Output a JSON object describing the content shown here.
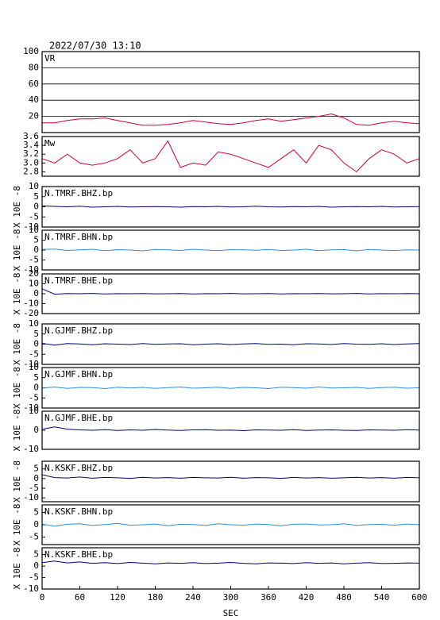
{
  "chart_data": [
    {
      "type": "line",
      "title": "2022/07/30 13:10",
      "label": "VR",
      "color": "#d0003a",
      "grid": true,
      "x": [
        0,
        20,
        40,
        60,
        80,
        100,
        120,
        140,
        160,
        180,
        200,
        220,
        240,
        260,
        280,
        300,
        320,
        340,
        360,
        380,
        400,
        420,
        440,
        460,
        480,
        500,
        520,
        540,
        560,
        580,
        600
      ],
      "values": [
        12,
        12,
        15,
        17,
        17,
        18,
        15,
        12,
        9,
        9,
        10,
        12,
        15,
        13,
        11,
        10,
        12,
        15,
        17,
        14,
        16,
        18,
        20,
        23,
        18,
        10,
        9,
        12,
        14,
        12,
        11
      ],
      "xlim": [
        0,
        600
      ],
      "ylim": [
        0,
        100
      ],
      "yticks": [
        20,
        40,
        60,
        80,
        100
      ]
    },
    {
      "type": "line",
      "label": "Mw",
      "color": "#d0003a",
      "x": [
        0,
        20,
        40,
        60,
        80,
        100,
        120,
        140,
        160,
        180,
        200,
        220,
        240,
        260,
        280,
        300,
        320,
        340,
        360,
        380,
        400,
        420,
        440,
        460,
        480,
        500,
        520,
        540,
        560,
        580,
        600
      ],
      "values": [
        3.1,
        3.0,
        3.2,
        3.0,
        2.95,
        3.0,
        3.1,
        3.3,
        3.0,
        3.1,
        3.5,
        2.9,
        3.0,
        2.95,
        3.25,
        3.2,
        3.1,
        3.0,
        2.9,
        3.1,
        3.3,
        3.0,
        3.4,
        3.3,
        3.0,
        2.8,
        3.1,
        3.3,
        3.2,
        3.0,
        3.1
      ],
      "xlim": [
        0,
        600
      ],
      "ylim": [
        2.7,
        3.6
      ],
      "yticks": [
        {
          "value": 2.8,
          "label": "2.8"
        },
        {
          "value": 3,
          "label": "3.0"
        },
        {
          "value": 3.2,
          "label": "3.2"
        },
        {
          "value": 3.4,
          "label": "3.4"
        },
        {
          "value": 3.6,
          "label": "3.6"
        }
      ]
    },
    {
      "type": "line",
      "label": "N.TMRF.BHZ.bp",
      "ylabel": "X 10E -8",
      "color": "#000080",
      "x": [
        0,
        20,
        40,
        60,
        80,
        100,
        120,
        140,
        160,
        180,
        200,
        220,
        240,
        260,
        280,
        300,
        320,
        340,
        360,
        380,
        400,
        420,
        440,
        460,
        480,
        500,
        520,
        540,
        560,
        580,
        600
      ],
      "values": [
        0.5,
        0.2,
        0,
        0.3,
        -0.2,
        0,
        0.2,
        -0.1,
        0,
        0.1,
        0,
        -0.2,
        0.1,
        0,
        0.2,
        -0.1,
        0,
        0.3,
        0,
        -0.1,
        0.1,
        0,
        0.2,
        -0.2,
        0,
        0.1,
        0,
        0.2,
        -0.1,
        0,
        0.1
      ],
      "xlim": [
        0,
        600
      ],
      "ylim": [
        -10,
        10
      ],
      "yticks": [
        -10,
        -5,
        0,
        5,
        10
      ]
    },
    {
      "type": "line",
      "label": "N.TMRF.BHN.bp",
      "ylabel": "X 10E -8",
      "color": "#2f8fd8",
      "x": [
        0,
        20,
        40,
        60,
        80,
        100,
        120,
        140,
        160,
        180,
        200,
        220,
        240,
        260,
        280,
        300,
        320,
        340,
        360,
        380,
        400,
        420,
        440,
        460,
        480,
        500,
        520,
        540,
        560,
        580,
        600
      ],
      "values": [
        0.3,
        0.5,
        -0.2,
        0.1,
        0.4,
        -0.3,
        0.2,
        0,
        -0.4,
        0.3,
        0.1,
        -0.2,
        0.4,
        0,
        -0.3,
        0.2,
        0.1,
        -0.1,
        0.3,
        -0.2,
        0,
        0.4,
        -0.3,
        0.1,
        0.2,
        -0.4,
        0.3,
        0,
        -0.2,
        0.1,
        0
      ],
      "xlim": [
        0,
        600
      ],
      "ylim": [
        -10,
        10
      ],
      "yticks": [
        -10,
        -5,
        0,
        5,
        10
      ]
    },
    {
      "type": "line",
      "label": "N.TMRF.BHE.bp",
      "ylabel": "X 10E -8",
      "color": "#000080",
      "x": [
        0,
        20,
        40,
        60,
        80,
        100,
        120,
        140,
        160,
        180,
        200,
        220,
        240,
        260,
        280,
        300,
        320,
        340,
        360,
        380,
        400,
        420,
        440,
        460,
        480,
        500,
        520,
        540,
        560,
        580,
        600
      ],
      "values": [
        5,
        -0.5,
        0.2,
        0,
        0.3,
        -0.2,
        0.1,
        0,
        0.2,
        -0.1,
        0,
        0.2,
        -0.2,
        0.1,
        0,
        0.3,
        -0.1,
        0,
        0.2,
        -0.2,
        0.1,
        0,
        0.2,
        -0.1,
        0,
        0.3,
        -0.2,
        0.1,
        0,
        0.2,
        0
      ],
      "xlim": [
        0,
        600
      ],
      "ylim": [
        -20,
        20
      ],
      "yticks": [
        -20,
        -10,
        0,
        10,
        20
      ]
    },
    {
      "type": "line",
      "label": "N.GJMF.BHZ.bp",
      "ylabel": "X 10E -8",
      "color": "#000080",
      "x": [
        0,
        20,
        40,
        60,
        80,
        100,
        120,
        140,
        160,
        180,
        200,
        220,
        240,
        260,
        280,
        300,
        320,
        340,
        360,
        380,
        400,
        420,
        440,
        460,
        480,
        500,
        520,
        540,
        560,
        580,
        600
      ],
      "values": [
        0.4,
        -0.5,
        0.3,
        0.1,
        -0.3,
        0.2,
        0,
        -0.2,
        0.3,
        -0.1,
        0.1,
        0.2,
        -0.3,
        0,
        0.2,
        -0.2,
        0.1,
        0.3,
        -0.1,
        0,
        -0.3,
        0.2,
        0.1,
        -0.2,
        0.3,
        0,
        -0.1,
        0.2,
        -0.2,
        0.1,
        0.3
      ],
      "xlim": [
        0,
        600
      ],
      "ylim": [
        -10,
        10
      ],
      "yticks": [
        -10,
        -5,
        0,
        5,
        10
      ]
    },
    {
      "type": "line",
      "label": "N.GJMF.BHN.bp",
      "ylabel": "X 10E -8",
      "color": "#2f8fd8",
      "x": [
        0,
        20,
        40,
        60,
        80,
        100,
        120,
        140,
        160,
        180,
        200,
        220,
        240,
        260,
        280,
        300,
        320,
        340,
        360,
        380,
        400,
        420,
        440,
        460,
        480,
        500,
        520,
        540,
        560,
        580,
        600
      ],
      "values": [
        -0.2,
        0.4,
        -0.3,
        0.2,
        0.1,
        -0.4,
        0.3,
        -0.1,
        0.2,
        -0.3,
        0.1,
        0.4,
        -0.2,
        0,
        0.3,
        -0.3,
        0.2,
        0,
        -0.4,
        0.3,
        0.1,
        -0.2,
        0.4,
        -0.1,
        0,
        0.2,
        -0.3,
        0.1,
        0.3,
        -0.2,
        0
      ],
      "xlim": [
        0,
        600
      ],
      "ylim": [
        -10,
        10
      ],
      "yticks": [
        -10,
        -5,
        0,
        5,
        10
      ]
    },
    {
      "type": "line",
      "label": "N.GJMF.BHE.bp",
      "ylabel": "X 10E -8",
      "color": "#000080",
      "x": [
        0,
        20,
        40,
        60,
        80,
        100,
        120,
        140,
        160,
        180,
        200,
        220,
        240,
        260,
        280,
        300,
        320,
        340,
        360,
        380,
        400,
        420,
        440,
        460,
        480,
        500,
        520,
        540,
        560,
        580,
        600
      ],
      "values": [
        0.5,
        1.8,
        0.6,
        0.2,
        0,
        0.3,
        -0.1,
        0.2,
        0,
        0.4,
        0.1,
        -0.1,
        0.2,
        0.3,
        0,
        0.1,
        -0.2,
        0.2,
        0.1,
        0,
        0.3,
        -0.1,
        0.1,
        0.2,
        0,
        -0.1,
        0.2,
        0.1,
        0,
        0.3,
        0.1
      ],
      "xlim": [
        0,
        600
      ],
      "ylim": [
        -10,
        10
      ],
      "yticks": [
        -10,
        0,
        10
      ]
    },
    {
      "type": "line",
      "label": "N.KSKF.BHZ.bp",
      "ylabel": "X 10E -8",
      "color": "#000080",
      "x": [
        0,
        20,
        40,
        60,
        80,
        100,
        120,
        140,
        160,
        180,
        200,
        220,
        240,
        260,
        280,
        300,
        320,
        340,
        360,
        380,
        400,
        420,
        440,
        460,
        480,
        500,
        520,
        540,
        560,
        580,
        600
      ],
      "values": [
        2,
        0.5,
        0.3,
        0.8,
        0.2,
        0.6,
        0.4,
        0.1,
        0.7,
        0.3,
        0.5,
        0.2,
        0.6,
        0.4,
        0.3,
        0.7,
        0.2,
        0.5,
        0.4,
        0.1,
        0.6,
        0.3,
        0.5,
        0.2,
        0.4,
        0.7,
        0.3,
        0.5,
        0.2,
        0.6,
        0.4
      ],
      "xlim": [
        0,
        600
      ],
      "ylim": [
        -12,
        9
      ],
      "yticks": [
        -10,
        -5,
        0,
        5
      ]
    },
    {
      "type": "line",
      "label": "N.KSKF.BHN.bp",
      "ylabel": "X 10E -8",
      "color": "#2f8fd8",
      "x": [
        0,
        20,
        40,
        60,
        80,
        100,
        120,
        140,
        160,
        180,
        200,
        220,
        240,
        260,
        280,
        300,
        320,
        340,
        360,
        380,
        400,
        420,
        440,
        460,
        480,
        500,
        520,
        540,
        560,
        580,
        600
      ],
      "values": [
        0.3,
        -0.6,
        0.2,
        0.4,
        -0.3,
        0.1,
        0.5,
        -0.2,
        0,
        0.3,
        -0.4,
        0.2,
        0.1,
        -0.3,
        0.4,
        0,
        -0.2,
        0.3,
        0.1,
        -0.4,
        0.2,
        0.3,
        -0.1,
        0,
        0.4,
        -0.3,
        0.1,
        0.2,
        -0.2,
        0.3,
        0
      ],
      "xlim": [
        0,
        600
      ],
      "ylim": [
        -8,
        8
      ],
      "yticks": [
        -5,
        0,
        5
      ]
    },
    {
      "type": "line",
      "label": "N.KSKF.BHE.bp",
      "ylabel": "X 10E -8",
      "color": "#000080",
      "xlabel": "SEC",
      "x": [
        0,
        20,
        40,
        60,
        80,
        100,
        120,
        140,
        160,
        180,
        200,
        220,
        240,
        260,
        280,
        300,
        320,
        340,
        360,
        380,
        400,
        420,
        440,
        460,
        480,
        500,
        520,
        540,
        560,
        580,
        600
      ],
      "values": [
        1.5,
        2.2,
        1.4,
        1.8,
        1.2,
        1.5,
        1.1,
        1.6,
        1.3,
        1,
        1.4,
        1.2,
        1.5,
        1.1,
        1.3,
        1.6,
        1.2,
        1,
        1.4,
        1.3,
        1.1,
        1.5,
        1.2,
        1.4,
        1,
        1.3,
        1.5,
        1.1,
        1.2,
        1.4,
        1.3
      ],
      "xlim": [
        0,
        600
      ],
      "ylim": [
        -10,
        8
      ],
      "yticks": [
        -10,
        -5,
        0,
        5
      ],
      "xticks": [
        0,
        60,
        120,
        180,
        240,
        300,
        360,
        420,
        480,
        540,
        600
      ]
    }
  ]
}
